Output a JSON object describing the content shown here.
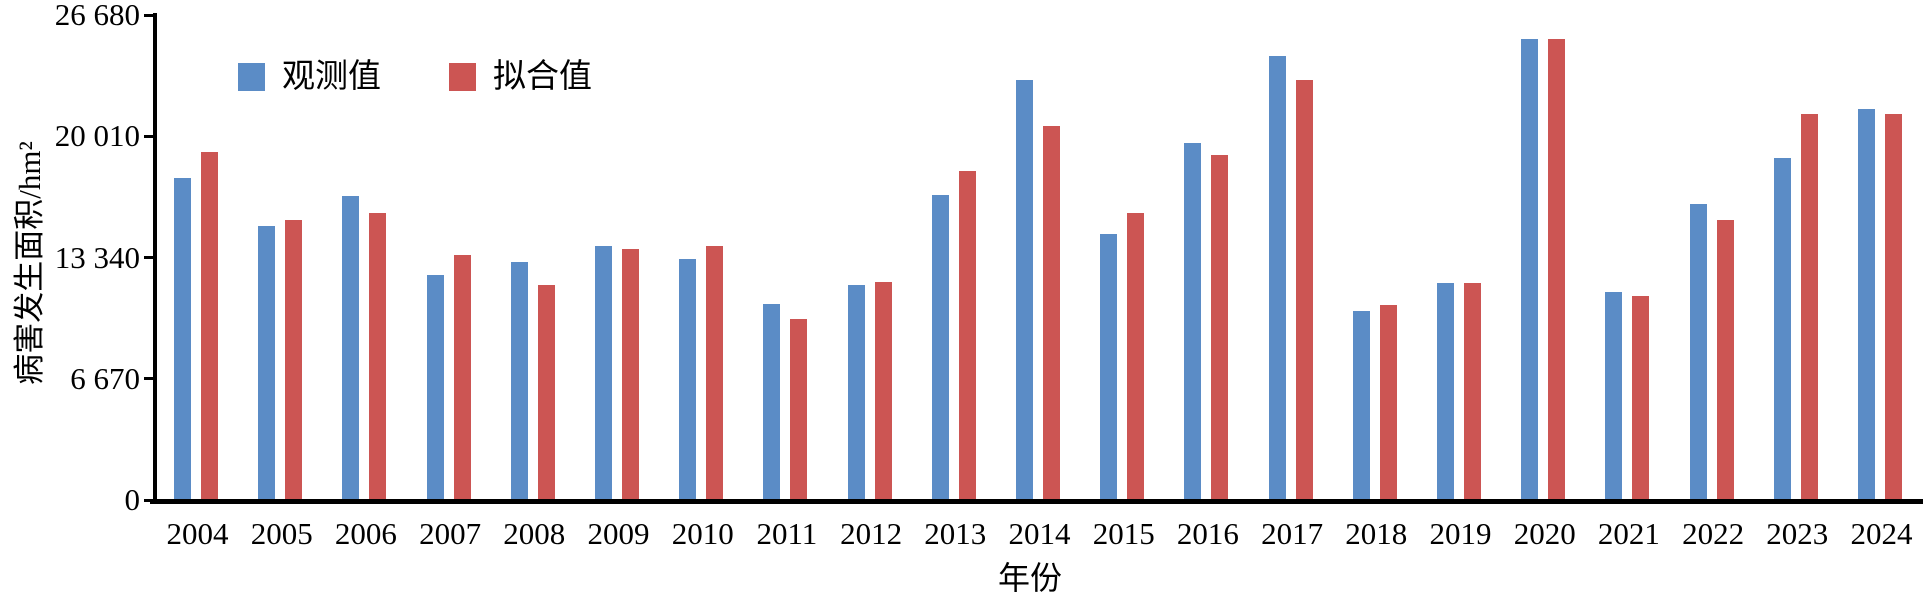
{
  "chart_data": {
    "type": "bar",
    "title": "",
    "xlabel": "年份",
    "ylabel": "病害发生面积/hm²",
    "ylim": [
      0,
      26680
    ],
    "grid": false,
    "legend_position": "top-left-inside",
    "categories": [
      "2004",
      "2005",
      "2006",
      "2007",
      "2008",
      "2009",
      "2010",
      "2011",
      "2012",
      "2013",
      "2014",
      "2015",
      "2016",
      "2017",
      "2018",
      "2019",
      "2020",
      "2021",
      "2022",
      "2023",
      "2024"
    ],
    "series": [
      {
        "name": "观测值",
        "color": "#5B8CC6",
        "values": [
          17700,
          15100,
          16700,
          12400,
          13100,
          13950,
          13250,
          10800,
          11850,
          16800,
          23100,
          14650,
          19650,
          24400,
          10400,
          11950,
          25350,
          11450,
          16300,
          18800,
          21500
        ]
      },
      {
        "name": "拟合值",
        "color": "#CC5553",
        "values": [
          19150,
          15400,
          15800,
          13500,
          11850,
          13800,
          14000,
          9950,
          12000,
          18100,
          20600,
          15800,
          19000,
          23100,
          10750,
          11950,
          25350,
          11200,
          15400,
          21250,
          21250
        ]
      }
    ],
    "yticks": {
      "values": [
        0,
        6670,
        13340,
        20010,
        26680
      ],
      "labels": [
        "0",
        "6 670",
        "13 340",
        "20 010",
        "26 680"
      ]
    }
  },
  "axes": {
    "x_title": "年份",
    "y_title": "病害发生面积/hm²",
    "axis_color": "#000000"
  },
  "legend": {
    "observed_label": "观测值",
    "fitted_label": "拟合值"
  }
}
